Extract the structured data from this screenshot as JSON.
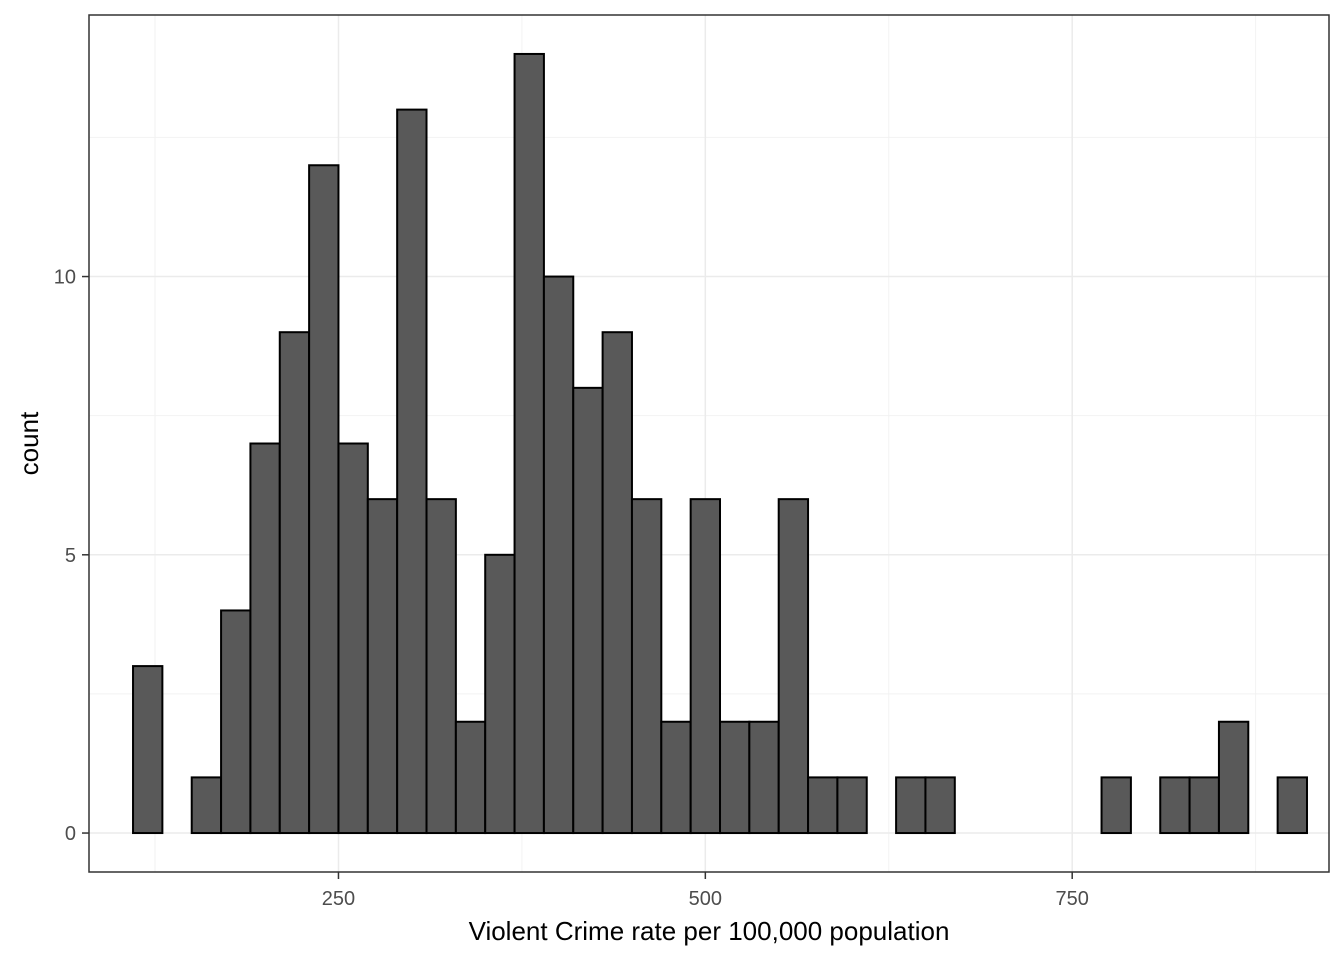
{
  "chart_data": {
    "type": "bar",
    "subtype": "histogram",
    "title": "",
    "xlabel": "Violent Crime rate per 100,000 population",
    "ylabel": "count",
    "bin_width": 20,
    "bins": [
      {
        "x": 120,
        "count": 3
      },
      {
        "x": 140,
        "count": 0
      },
      {
        "x": 160,
        "count": 1
      },
      {
        "x": 180,
        "count": 4
      },
      {
        "x": 200,
        "count": 7
      },
      {
        "x": 220,
        "count": 9
      },
      {
        "x": 240,
        "count": 12
      },
      {
        "x": 260,
        "count": 7
      },
      {
        "x": 280,
        "count": 6
      },
      {
        "x": 300,
        "count": 13
      },
      {
        "x": 320,
        "count": 6
      },
      {
        "x": 340,
        "count": 2
      },
      {
        "x": 360,
        "count": 5
      },
      {
        "x": 380,
        "count": 14
      },
      {
        "x": 400,
        "count": 10
      },
      {
        "x": 420,
        "count": 8
      },
      {
        "x": 440,
        "count": 9
      },
      {
        "x": 460,
        "count": 6
      },
      {
        "x": 480,
        "count": 2
      },
      {
        "x": 500,
        "count": 6
      },
      {
        "x": 520,
        "count": 2
      },
      {
        "x": 540,
        "count": 2
      },
      {
        "x": 560,
        "count": 6
      },
      {
        "x": 580,
        "count": 1
      },
      {
        "x": 600,
        "count": 1
      },
      {
        "x": 620,
        "count": 0
      },
      {
        "x": 640,
        "count": 1
      },
      {
        "x": 660,
        "count": 1
      },
      {
        "x": 680,
        "count": 0
      },
      {
        "x": 700,
        "count": 0
      },
      {
        "x": 720,
        "count": 0
      },
      {
        "x": 740,
        "count": 0
      },
      {
        "x": 760,
        "count": 0
      },
      {
        "x": 780,
        "count": 1
      },
      {
        "x": 800,
        "count": 0
      },
      {
        "x": 820,
        "count": 1
      },
      {
        "x": 840,
        "count": 1
      },
      {
        "x": 860,
        "count": 2
      },
      {
        "x": 880,
        "count": 0
      },
      {
        "x": 900,
        "count": 1
      }
    ],
    "xlim": [
      80,
      925
    ],
    "ylim": [
      -0.7,
      14.7
    ],
    "x_ticks": [
      250,
      500,
      750
    ],
    "x_tick_labels": [
      "250",
      "500",
      "750"
    ],
    "y_ticks": [
      0,
      5,
      10
    ],
    "y_tick_labels": [
      "0",
      "5",
      "10"
    ],
    "grid": true,
    "theme": "bw",
    "colors": {
      "bar_fill": "#595959",
      "bar_outline": "#000000",
      "grid_major": "#ebebeb",
      "grid_minor": "#f2f2f2",
      "panel_border": "#333333"
    }
  }
}
